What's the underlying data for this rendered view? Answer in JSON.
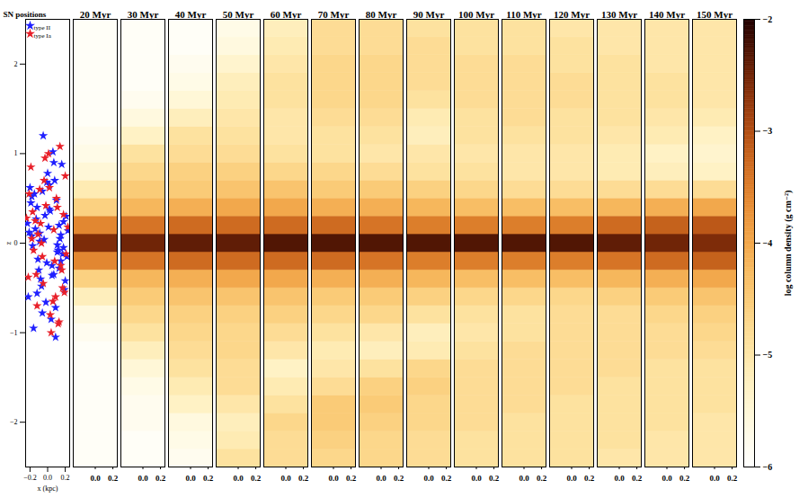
{
  "chart_data": [
    {
      "type": "scatter",
      "title": "SN positions",
      "x_label": "x (kpc)",
      "y_label": "z",
      "xlim": [
        -0.25,
        0.25
      ],
      "xticks": [
        {
          "value": -0.2,
          "label": "−0.2"
        },
        {
          "value": 0,
          "label": "0.0"
        },
        {
          "value": 0.2,
          "label": "0.2"
        }
      ],
      "ylim": [
        -2.5,
        2.5
      ],
      "yticks": [
        {
          "value": -2,
          "label": "−2"
        },
        {
          "value": -1,
          "label": "−1"
        },
        0,
        1,
        2
      ],
      "legend": "upper left",
      "series": [
        {
          "name": "type II",
          "color": "#2020ff",
          "marker": "star",
          "x": [
            -0.21,
            0.05,
            -0.12,
            0.18,
            0.02,
            -0.07,
            0.13,
            -0.18,
            0.09,
            -0.03,
            0.22,
            -0.15,
            0.07,
            -0.09,
            0.16,
            -0.22,
            0.01,
            0.11,
            -0.05,
            0.2,
            -0.13,
            0.04,
            -0.19,
            0.14,
            -0.01,
            0.08,
            -0.1,
            0.23,
            -0.16,
            0.03,
            0.12,
            -0.06,
            0.19,
            -0.23,
            0.06,
            -0.11,
            0.15,
            -0.02,
            0.1,
            -0.17,
            0.21,
            -0.08,
            0.0,
            0.17,
            -0.14,
            0.09,
            -0.2,
            0.13,
            -0.04,
            0.07,
            -0.12,
            0.18,
            -0.06,
            0.02,
            0.11,
            -0.18,
            0.05,
            -0.09,
            0.15,
            -0.01
          ],
          "y": [
            0.12,
            -0.25,
            0.4,
            -0.05,
            0.65,
            -0.48,
            0.2,
            0.08,
            -0.72,
            0.31,
            -0.15,
            0.55,
            -0.35,
            0.02,
            0.88,
            -0.6,
            0.18,
            -0.1,
            1.2,
            -0.42,
            0.27,
            -0.85,
            0.45,
            0.05,
            -0.22,
            0.7,
            -0.3,
            0.14,
            -0.95,
            0.36,
            -0.08,
            0.58,
            -0.52,
            0.22,
            1.02,
            -0.18,
            0.09,
            -0.66,
            0.48,
            -0.03,
            0.3,
            -0.4,
            0.78,
            -0.12,
            0.16,
            -1.05,
            0.62,
            -0.28,
            0.04,
            0.9,
            -0.56,
            0.24,
            -0.78,
            0.38,
            -0.02,
            0.52,
            -0.36,
            0.11,
            -0.2,
            0.68
          ]
        },
        {
          "name": "type Ia",
          "color": "#e8202a",
          "marker": "star",
          "x": [
            -0.17,
            0.08,
            -0.04,
            0.19,
            -0.11,
            0.14,
            -0.22,
            0.03,
            0.1,
            -0.07,
            0.21,
            -0.14,
            0.06,
            -0.19,
            0.16,
            -0.02,
            0.12,
            -0.09,
            0.23,
            -0.05,
            0.01,
            -0.16,
            0.18,
            -0.12,
            0.07,
            -0.21,
            0.15,
            -0.03,
            0.09,
            -0.08,
            0.2,
            -0.13,
            0.04,
            -0.18,
            0.11,
            -0.06,
            0.17,
            -0.24,
            0.02,
            0.13
          ],
          "y": [
            0.35,
            -0.2,
            0.7,
            -0.55,
            0.1,
            1.08,
            -0.38,
            -0.8,
            0.5,
            0.0,
            -0.12,
            0.25,
            -0.65,
            0.85,
            -0.3,
            0.42,
            -0.9,
            0.6,
            0.18,
            -0.45,
            1.0,
            -0.08,
            0.32,
            -0.7,
            0.15,
            0.55,
            -0.25,
            0.95,
            -0.6,
            0.22,
            0.75,
            -0.35,
            -1.0,
            0.05,
            0.4,
            -0.15,
            -0.5,
            0.28,
            0.62,
            -0.88
          ]
        }
      ]
    },
    {
      "type": "heatmap",
      "xlim": [
        -0.25,
        0.25
      ],
      "xticks": [
        {
          "value": 0,
          "label": "0.0"
        },
        {
          "value": 0.2,
          "label": "0.2"
        }
      ],
      "ylim": [
        -2.5,
        2.5
      ],
      "tick_labels": "x",
      "z_edges": [
        -2.5,
        -2.3,
        -2.1,
        -1.9,
        -1.7,
        -1.5,
        -1.3,
        -1.1,
        -0.9,
        -0.7,
        -0.5,
        -0.3,
        -0.1,
        0.1,
        0.3,
        0.5,
        0.7,
        0.9,
        1.1,
        1.3,
        1.5,
        1.7,
        1.9,
        2.1,
        2.3,
        2.5
      ],
      "colorbar": {
        "label": "log column density (g cm⁻²)",
        "range": [
          -6,
          -2
        ],
        "ticks": [
          {
            "value": -6,
            "label": "−6"
          },
          {
            "value": -5,
            "label": "−5"
          },
          {
            "value": -4,
            "label": "−4"
          },
          {
            "value": -3,
            "label": "−3"
          },
          {
            "value": -2,
            "label": "−2"
          }
        ]
      },
      "panels": [
        {
          "title": "20 Myr",
          "values": [
            -5.9,
            -5.9,
            -5.9,
            -5.9,
            -5.9,
            -5.9,
            -5.9,
            -5.8,
            -5.6,
            -5.2,
            -4.6,
            -3.6,
            -2.6,
            -3.6,
            -4.6,
            -5.1,
            -5.5,
            -5.7,
            -5.8,
            -5.9,
            -5.9,
            -5.9,
            -5.9,
            -5.9,
            -5.9
          ]
        },
        {
          "title": "30 Myr",
          "values": [
            -5.9,
            -5.9,
            -5.8,
            -5.8,
            -5.7,
            -5.5,
            -5.2,
            -4.9,
            -4.7,
            -4.5,
            -4.2,
            -3.4,
            -2.5,
            -3.4,
            -4.2,
            -4.5,
            -4.7,
            -4.9,
            -5.3,
            -5.6,
            -5.8,
            -5.9,
            -5.9,
            -5.9,
            -5.9
          ]
        },
        {
          "title": "40 Myr",
          "values": [
            -5.8,
            -5.7,
            -5.6,
            -5.3,
            -5.1,
            -4.9,
            -4.8,
            -4.7,
            -4.6,
            -4.4,
            -4.1,
            -3.3,
            -2.4,
            -3.3,
            -4.1,
            -4.5,
            -4.6,
            -4.8,
            -4.9,
            -5.2,
            -5.5,
            -5.7,
            -5.8,
            -5.9,
            -5.9
          ]
        },
        {
          "title": "50 Myr",
          "values": [
            -4.9,
            -5.1,
            -5.2,
            -5.0,
            -4.8,
            -4.8,
            -4.7,
            -4.7,
            -4.6,
            -4.4,
            -4.0,
            -3.3,
            -2.4,
            -3.3,
            -4.0,
            -4.4,
            -4.6,
            -4.8,
            -4.9,
            -5.0,
            -5.1,
            -5.2,
            -5.4,
            -5.6,
            -5.7
          ]
        },
        {
          "title": "60 Myr",
          "values": [
            -4.8,
            -4.8,
            -4.7,
            -4.9,
            -5.1,
            -5.3,
            -5.0,
            -4.8,
            -4.6,
            -4.4,
            -4.0,
            -3.3,
            -2.3,
            -3.3,
            -4.0,
            -4.4,
            -4.7,
            -4.9,
            -5.0,
            -5.0,
            -4.9,
            -4.9,
            -5.0,
            -5.1,
            -5.2
          ]
        },
        {
          "title": "70 Myr",
          "values": [
            -4.7,
            -4.6,
            -4.5,
            -4.5,
            -4.8,
            -5.0,
            -5.1,
            -4.9,
            -4.7,
            -4.5,
            -4.1,
            -3.3,
            -2.3,
            -3.3,
            -4.1,
            -4.5,
            -4.7,
            -4.9,
            -4.9,
            -4.8,
            -4.7,
            -4.7,
            -4.7,
            -4.8,
            -4.8
          ]
        },
        {
          "title": "80 Myr",
          "values": [
            -4.7,
            -4.7,
            -4.6,
            -4.5,
            -4.6,
            -4.9,
            -5.2,
            -5.0,
            -4.7,
            -4.5,
            -4.1,
            -3.4,
            -2.3,
            -3.4,
            -4.1,
            -4.5,
            -4.8,
            -5.0,
            -4.9,
            -4.8,
            -4.7,
            -4.7,
            -4.7,
            -4.8,
            -4.8
          ]
        },
        {
          "title": "90 Myr",
          "values": [
            -4.8,
            -4.8,
            -4.7,
            -4.7,
            -4.6,
            -4.7,
            -5.1,
            -5.2,
            -4.9,
            -4.6,
            -4.2,
            -3.5,
            -2.3,
            -3.5,
            -4.2,
            -4.6,
            -4.9,
            -5.0,
            -5.2,
            -5.1,
            -4.9,
            -4.8,
            -4.8,
            -4.8,
            -4.9
          ]
        },
        {
          "title": "100 Myr",
          "values": [
            -4.9,
            -4.9,
            -4.8,
            -4.8,
            -4.8,
            -4.8,
            -4.9,
            -5.0,
            -4.9,
            -4.7,
            -4.3,
            -3.5,
            -2.3,
            -3.5,
            -4.3,
            -4.7,
            -4.9,
            -5.0,
            -4.9,
            -4.9,
            -4.8,
            -4.8,
            -4.8,
            -4.9,
            -4.9
          ]
        },
        {
          "title": "110 Myr",
          "values": [
            -4.9,
            -4.9,
            -4.9,
            -4.8,
            -4.8,
            -4.8,
            -4.8,
            -4.9,
            -4.9,
            -4.7,
            -4.3,
            -3.5,
            -2.3,
            -3.5,
            -4.3,
            -4.8,
            -5.0,
            -5.0,
            -4.9,
            -4.8,
            -4.8,
            -4.8,
            -4.8,
            -4.9,
            -4.9
          ]
        },
        {
          "title": "120 Myr",
          "values": [
            -4.9,
            -4.9,
            -4.9,
            -4.9,
            -4.8,
            -4.8,
            -4.8,
            -4.8,
            -4.8,
            -4.7,
            -4.3,
            -3.5,
            -2.3,
            -3.5,
            -4.3,
            -4.8,
            -5.0,
            -5.0,
            -4.9,
            -4.9,
            -4.8,
            -4.8,
            -4.9,
            -4.9,
            -5.0
          ]
        },
        {
          "title": "130 Myr",
          "values": [
            -5.0,
            -4.9,
            -4.9,
            -4.9,
            -4.9,
            -4.8,
            -4.8,
            -4.8,
            -4.8,
            -4.6,
            -4.2,
            -3.4,
            -2.4,
            -3.3,
            -4.2,
            -4.8,
            -5.1,
            -5.1,
            -5.0,
            -4.9,
            -4.9,
            -4.9,
            -4.9,
            -5.0,
            -5.0
          ]
        },
        {
          "title": "140 Myr",
          "values": [
            -5.0,
            -5.0,
            -4.9,
            -4.9,
            -4.9,
            -4.9,
            -4.8,
            -4.8,
            -4.7,
            -4.5,
            -4.1,
            -3.3,
            -2.5,
            -3.2,
            -4.1,
            -4.8,
            -5.2,
            -5.3,
            -5.1,
            -5.0,
            -4.9,
            -4.9,
            -5.0,
            -5.0,
            -5.0
          ]
        },
        {
          "title": "150 Myr",
          "values": [
            -5.0,
            -5.0,
            -5.0,
            -4.9,
            -4.9,
            -4.9,
            -4.8,
            -4.7,
            -4.6,
            -4.4,
            -4.0,
            -3.2,
            -2.6,
            -3.1,
            -4.0,
            -4.8,
            -5.3,
            -5.4,
            -5.3,
            -5.1,
            -5.0,
            -5.0,
            -5.0,
            -5.0,
            -5.0
          ]
        }
      ]
    }
  ]
}
